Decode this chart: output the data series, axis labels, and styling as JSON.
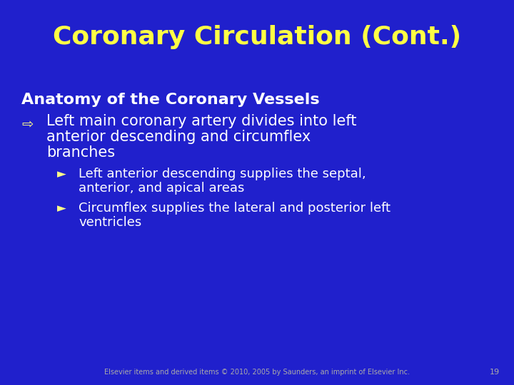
{
  "background_color": "#2020cc",
  "title": "Coronary Circulation (Cont.)",
  "title_color": "#ffff44",
  "title_fontsize": 26,
  "title_fontweight": "bold",
  "heading": "Anatomy of the Coronary Vessels",
  "heading_color": "#ffffff",
  "heading_fontsize": 16,
  "bullet_symbol": "⇨",
  "bullet_symbol_color": "#ffff88",
  "bullet_symbol_fontsize": 14,
  "bullet1_line1": "Left main coronary artery divides into left",
  "bullet1_line2": "anterior descending and circumflex",
  "bullet1_line3": "branches",
  "bullet1_color": "#ffffff",
  "bullet1_fontsize": 15,
  "sub_arrow_color": "#ffff88",
  "sub_arrow_fontsize": 12,
  "sub_bullet1_line1": "Left anterior descending supplies the septal,",
  "sub_bullet1_line2": "anterior, and apical areas",
  "sub_bullet2_line1": "Circumflex supplies the lateral and posterior left",
  "sub_bullet2_line2": "ventricles",
  "sub_bullet_color": "#ffffff",
  "sub_bullet_fontsize": 13,
  "footer": "Elsevier items and derived items © 2010, 2005 by Saunders, an imprint of Elsevier Inc.",
  "footer_color": "#aaaaaa",
  "footer_fontsize": 7,
  "page_number": "19",
  "page_number_color": "#aaaaaa",
  "page_number_fontsize": 8
}
